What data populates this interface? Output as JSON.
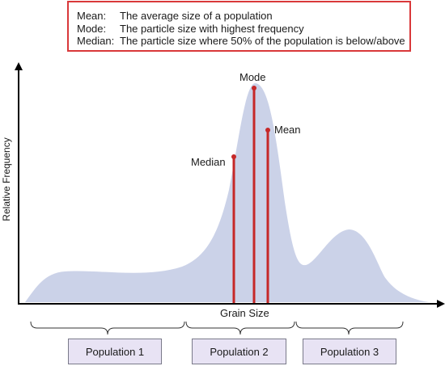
{
  "legend": [
    {
      "term": "Mean:",
      "definition": "The average size of a population"
    },
    {
      "term": "Mode:",
      "definition": "The particle size with highest frequency"
    },
    {
      "term": "Median:",
      "definition": "The particle size where 50% of the population is below/above"
    }
  ],
  "axes": {
    "y_label": "Relative Frequency",
    "x_label": "Grain Size"
  },
  "markers": {
    "mode": "Mode",
    "mean": "Mean",
    "median": "Median"
  },
  "populations": [
    "Population 1",
    "Population 2",
    "Population 3"
  ],
  "colors": {
    "curve_fill": "#cbd2e8",
    "marker_line": "#c62828",
    "legend_border": "#d9383a",
    "population_fill": "#e8e3f4"
  }
}
